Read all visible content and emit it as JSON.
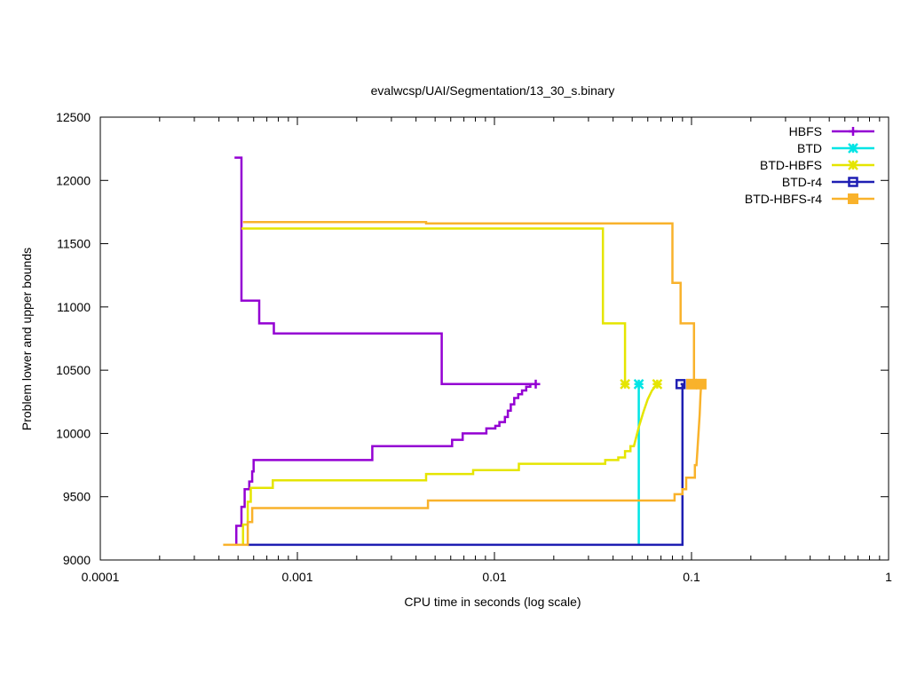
{
  "chart_data": {
    "type": "line",
    "title": "evalwcsp/UAI/Segmentation/13_30_s.binary",
    "xlabel": "CPU time in seconds (log scale)",
    "ylabel": "Problem lower and upper bounds",
    "x_scale": "log",
    "xlim": [
      0.0001,
      1
    ],
    "ylim": [
      9000,
      12500
    ],
    "x_ticks": [
      {
        "value": 0.0001,
        "label": "0.0001"
      },
      {
        "value": 0.001,
        "label": "0.001"
      },
      {
        "value": 0.01,
        "label": "0.01"
      },
      {
        "value": 0.1,
        "label": "0.1"
      },
      {
        "value": 1,
        "label": "1"
      }
    ],
    "y_ticks": [
      {
        "value": 9000,
        "label": "9000"
      },
      {
        "value": 9500,
        "label": "9500"
      },
      {
        "value": 10000,
        "label": "10000"
      },
      {
        "value": 10500,
        "label": "10500"
      },
      {
        "value": 11000,
        "label": "11000"
      },
      {
        "value": 11500,
        "label": "11500"
      },
      {
        "value": 12000,
        "label": "12000"
      },
      {
        "value": 12500,
        "label": "12500"
      }
    ],
    "grid": false,
    "legend_position": "top-right",
    "series": [
      {
        "name": "HBFS",
        "color": "#9400d3",
        "marker": "plus",
        "marker_points": [
          [
            0.0162,
            10390
          ]
        ],
        "lines": [
          [
            [
              0.00048,
              12180
            ],
            [
              0.00052,
              12180
            ],
            [
              0.00052,
              11050
            ],
            [
              0.00064,
              11050
            ],
            [
              0.00064,
              10870
            ],
            [
              0.00076,
              10870
            ],
            [
              0.00076,
              10790
            ],
            [
              0.0054,
              10790
            ],
            [
              0.0054,
              10390
            ],
            [
              0.0162,
              10390
            ]
          ],
          [
            [
              0.00049,
              9120
            ],
            [
              0.00049,
              9270
            ],
            [
              0.00052,
              9270
            ],
            [
              0.00052,
              9420
            ],
            [
              0.00054,
              9420
            ],
            [
              0.00054,
              9560
            ],
            [
              0.00057,
              9560
            ],
            [
              0.00057,
              9620
            ],
            [
              0.00059,
              9620
            ],
            [
              0.00059,
              9700
            ],
            [
              0.0006,
              9700
            ],
            [
              0.0006,
              9790
            ],
            [
              0.0024,
              9790
            ],
            [
              0.0024,
              9900
            ],
            [
              0.0061,
              9900
            ],
            [
              0.0061,
              9950
            ],
            [
              0.0069,
              9950
            ],
            [
              0.0069,
              10000
            ],
            [
              0.0091,
              10000
            ],
            [
              0.0091,
              10040
            ],
            [
              0.0101,
              10040
            ],
            [
              0.0101,
              10060
            ],
            [
              0.0106,
              10060
            ],
            [
              0.0106,
              10090
            ],
            [
              0.0113,
              10090
            ],
            [
              0.0113,
              10130
            ],
            [
              0.0117,
              10130
            ],
            [
              0.0117,
              10180
            ],
            [
              0.0121,
              10180
            ],
            [
              0.0121,
              10230
            ],
            [
              0.0126,
              10230
            ],
            [
              0.0126,
              10280
            ],
            [
              0.0132,
              10280
            ],
            [
              0.0132,
              10310
            ],
            [
              0.0138,
              10310
            ],
            [
              0.0138,
              10340
            ],
            [
              0.0145,
              10340
            ],
            [
              0.0145,
              10370
            ],
            [
              0.0152,
              10370
            ],
            [
              0.0152,
              10390
            ],
            [
              0.0162,
              10390
            ]
          ]
        ]
      },
      {
        "name": "BTD",
        "color": "#00e5e5",
        "marker": "star",
        "marker_points": [
          [
            0.054,
            10390
          ]
        ],
        "lines": [
          [
            [
              0.054,
              9120
            ],
            [
              0.054,
              10390
            ]
          ]
        ]
      },
      {
        "name": "BTD-HBFS",
        "color": "#e5e500",
        "marker": "star",
        "marker_points": [
          [
            0.046,
            10390
          ],
          [
            0.067,
            10390
          ]
        ],
        "lines": [
          [
            [
              0.00052,
              11620
            ],
            [
              0.0355,
              11620
            ],
            [
              0.0355,
              10870
            ],
            [
              0.046,
              10870
            ],
            [
              0.046,
              10390
            ]
          ],
          [
            [
              0.00053,
              9120
            ],
            [
              0.00053,
              9280
            ],
            [
              0.00056,
              9280
            ],
            [
              0.00056,
              9460
            ],
            [
              0.00058,
              9460
            ],
            [
              0.00058,
              9570
            ],
            [
              0.00075,
              9570
            ],
            [
              0.00075,
              9630
            ],
            [
              0.0045,
              9630
            ],
            [
              0.0045,
              9680
            ],
            [
              0.0078,
              9680
            ],
            [
              0.0078,
              9710
            ],
            [
              0.0133,
              9710
            ],
            [
              0.0133,
              9760
            ],
            [
              0.0365,
              9760
            ],
            [
              0.0365,
              9790
            ],
            [
              0.0425,
              9790
            ],
            [
              0.0425,
              9810
            ],
            [
              0.046,
              9810
            ],
            [
              0.046,
              9860
            ],
            [
              0.049,
              9860
            ],
            [
              0.049,
              9900
            ],
            [
              0.051,
              9900
            ],
            [
              0.054,
              10050
            ],
            [
              0.057,
              10170
            ],
            [
              0.06,
              10270
            ],
            [
              0.063,
              10340
            ],
            [
              0.067,
              10390
            ]
          ]
        ]
      },
      {
        "name": "BTD-r4",
        "color": "#1f1fb3",
        "marker": "open-square",
        "marker_points": [
          [
            0.088,
            10390
          ]
        ],
        "lines": [
          [
            [
              0.00056,
              9120
            ],
            [
              0.09,
              9120
            ],
            [
              0.09,
              10390
            ],
            [
              0.088,
              10390
            ]
          ]
        ]
      },
      {
        "name": "BTD-HBFS-r4",
        "color": "#f9b22b",
        "marker": "filled-square",
        "marker_points": [
          [
            0.1,
            10390
          ],
          [
            0.112,
            10390
          ]
        ],
        "lines": [
          [
            [
              0.00053,
              11670
            ],
            [
              0.0045,
              11670
            ],
            [
              0.0045,
              11660
            ],
            [
              0.08,
              11660
            ],
            [
              0.08,
              11190
            ],
            [
              0.088,
              11190
            ],
            [
              0.088,
              10870
            ],
            [
              0.103,
              10870
            ],
            [
              0.103,
              10390
            ],
            [
              0.112,
              10390
            ]
          ],
          [
            [
              0.00042,
              9120
            ],
            [
              0.00056,
              9120
            ],
            [
              0.00056,
              9300
            ],
            [
              0.00059,
              9300
            ],
            [
              0.00059,
              9410
            ],
            [
              0.0046,
              9410
            ],
            [
              0.0046,
              9470
            ],
            [
              0.082,
              9470
            ],
            [
              0.082,
              9520
            ],
            [
              0.09,
              9520
            ],
            [
              0.09,
              9560
            ],
            [
              0.094,
              9560
            ],
            [
              0.094,
              9650
            ],
            [
              0.104,
              9650
            ],
            [
              0.104,
              9750
            ],
            [
              0.106,
              9750
            ],
            [
              0.108,
              9950
            ],
            [
              0.11,
              10150
            ],
            [
              0.111,
              10300
            ],
            [
              0.112,
              10390
            ]
          ]
        ]
      }
    ]
  }
}
